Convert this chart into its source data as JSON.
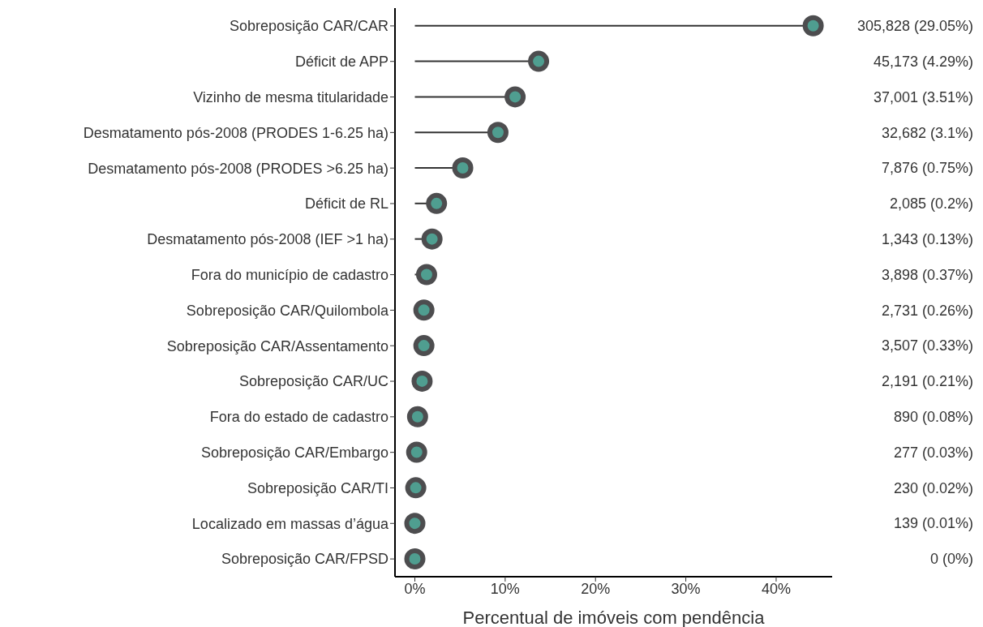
{
  "chart_data": {
    "type": "lollipop",
    "orientation": "horizontal",
    "xlabel": "Percentual de imóveis com pendência",
    "categories": [
      "Sobreposição CAR/CAR",
      "Déficit de APP",
      "Vizinho de mesma titularidade",
      "Desmatamento pós-2008 (PRODES 1-6.25 ha)",
      "Desmatamento pós-2008 (PRODES >6.25 ha)",
      "Déficit de RL",
      "Desmatamento pós-2008 (IEF >1 ha)",
      "Fora do município de cadastro",
      "Sobreposição CAR/Quilombola",
      "Sobreposição CAR/Assentamento",
      "Sobreposição CAR/UC",
      "Fora do estado de cadastro",
      "Sobreposição CAR/Embargo",
      "Sobreposição CAR/TI",
      "Localizado em massas d’água",
      "Sobreposição CAR/FPSD"
    ],
    "values": [
      44.1,
      13.7,
      11.1,
      9.2,
      5.3,
      2.4,
      1.9,
      1.3,
      1.0,
      1.0,
      0.8,
      0.3,
      0.2,
      0.1,
      0.0,
      0.0
    ],
    "value_labels": [
      "305,828 (29.05%)",
      "45,173 (4.29%)",
      "37,001 (3.51%)",
      "32,682 (3.1%)",
      "7,876 (0.75%)",
      "2,085 (0.2%)",
      "1,343 (0.13%)",
      "3,898 (0.37%)",
      "2,731 (0.26%)",
      "3,507 (0.33%)",
      "2,191 (0.21%)",
      "890 (0.08%)",
      "277 (0.03%)",
      "230 (0.02%)",
      "139 (0.01%)",
      "0 (0%)"
    ],
    "color": "#4f9e90",
    "marker": "circle",
    "xlim": [
      -2.2,
      46.2
    ],
    "xticks": [
      {
        "value": 0,
        "label": "0%"
      },
      {
        "value": 10,
        "label": "10%"
      },
      {
        "value": 20,
        "label": "20%"
      },
      {
        "value": 30,
        "label": "30%"
      },
      {
        "value": 40,
        "label": "40%"
      }
    ]
  }
}
